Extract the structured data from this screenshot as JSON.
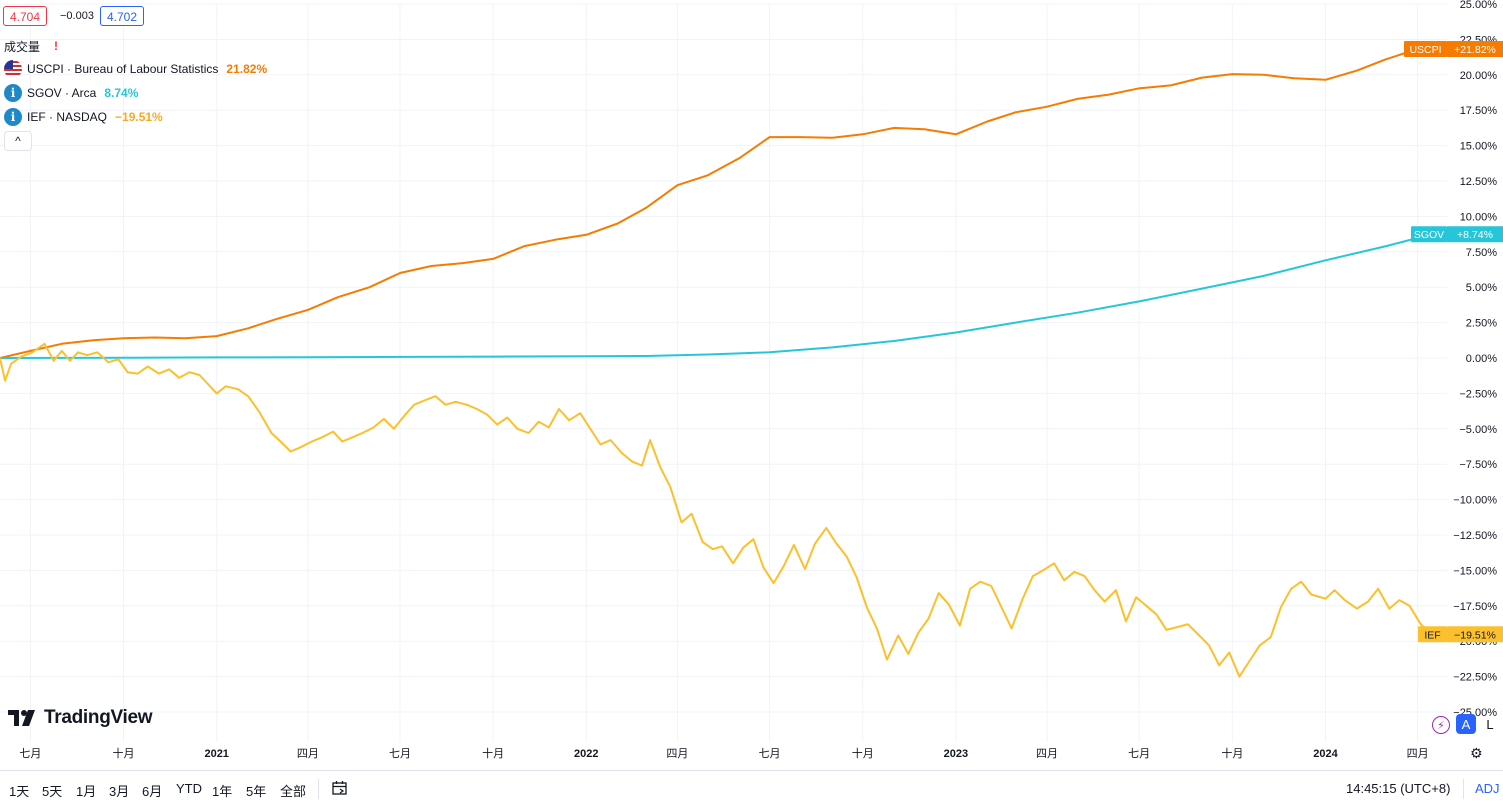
{
  "quote": {
    "sell": "4.704",
    "spread": "−0.003",
    "buy": "4.702"
  },
  "legend": {
    "volume_label": "成交量",
    "warning": "!",
    "series": [
      {
        "symbol": "USCPI · Bureau of Labour Statistics",
        "value": "21.82%",
        "color": "#f57c00",
        "icon": "us-flag-icon"
      },
      {
        "symbol": "SGOV · Arca",
        "value": "8.74%",
        "color": "#26c6da",
        "icon": "info-icon"
      },
      {
        "symbol": "IEF · NASDAQ",
        "value": "−19.51%",
        "color": "#fbc02d",
        "icon": "info-icon"
      }
    ],
    "collapse": "^"
  },
  "brand": "TradingView",
  "timeframes": [
    "1天",
    "5天",
    "1月",
    "3月",
    "6月",
    "YTD",
    "1年",
    "5年",
    "全部"
  ],
  "clock": "14:45:15 (UTC+8)",
  "adj": "ADJ",
  "scale_buttons": {
    "auto": "A",
    "log": "L"
  },
  "chart_data": {
    "type": "line",
    "y_unit": "%",
    "ylim": [
      -25,
      25
    ],
    "yticks": [
      "25.00%",
      "22.50%",
      "20.00%",
      "17.50%",
      "15.00%",
      "12.50%",
      "10.00%",
      "7.50%",
      "5.00%",
      "2.50%",
      "0.00%",
      "−2.50%",
      "−5.00%",
      "−7.50%",
      "−10.00%",
      "−12.50%",
      "−15.00%",
      "−17.50%",
      "−20.00%",
      "−22.50%",
      "−25.00%"
    ],
    "xlim": [
      "2020-06-01",
      "2024-04-30"
    ],
    "xticks": [
      {
        "label": "七月",
        "date": "2020-07-01",
        "bold": false
      },
      {
        "label": "十月",
        "date": "2020-10-01",
        "bold": false
      },
      {
        "label": "2021",
        "date": "2021-01-01",
        "bold": true
      },
      {
        "label": "四月",
        "date": "2021-04-01",
        "bold": false
      },
      {
        "label": "七月",
        "date": "2021-07-01",
        "bold": false
      },
      {
        "label": "十月",
        "date": "2021-10-01",
        "bold": false
      },
      {
        "label": "2022",
        "date": "2022-01-01",
        "bold": true
      },
      {
        "label": "四月",
        "date": "2022-04-01",
        "bold": false
      },
      {
        "label": "七月",
        "date": "2022-07-01",
        "bold": false
      },
      {
        "label": "十月",
        "date": "2022-10-01",
        "bold": false
      },
      {
        "label": "2023",
        "date": "2023-01-01",
        "bold": true
      },
      {
        "label": "四月",
        "date": "2023-04-01",
        "bold": false
      },
      {
        "label": "七月",
        "date": "2023-07-01",
        "bold": false
      },
      {
        "label": "十月",
        "date": "2023-10-01",
        "bold": false
      },
      {
        "label": "2024",
        "date": "2024-01-01",
        "bold": true
      },
      {
        "label": "四月",
        "date": "2024-04-01",
        "bold": false
      }
    ],
    "series": [
      {
        "name": "USCPI",
        "tag": "USCPI",
        "last_label": "+21.82%",
        "color": "#f57c00",
        "tag_color": "#f57c00",
        "points": [
          [
            "2020-06-01",
            0.0
          ],
          [
            "2020-07-01",
            0.5
          ],
          [
            "2020-08-01",
            1.0
          ],
          [
            "2020-09-01",
            1.25
          ],
          [
            "2020-10-01",
            1.4
          ],
          [
            "2020-11-01",
            1.45
          ],
          [
            "2020-12-01",
            1.4
          ],
          [
            "2021-01-01",
            1.55
          ],
          [
            "2021-02-01",
            2.1
          ],
          [
            "2021-03-01",
            2.75
          ],
          [
            "2021-04-01",
            3.4
          ],
          [
            "2021-05-01",
            4.3
          ],
          [
            "2021-06-01",
            5.0
          ],
          [
            "2021-07-01",
            6.0
          ],
          [
            "2021-08-01",
            6.5
          ],
          [
            "2021-09-01",
            6.7
          ],
          [
            "2021-10-01",
            7.0
          ],
          [
            "2021-11-01",
            7.9
          ],
          [
            "2021-12-01",
            8.35
          ],
          [
            "2022-01-01",
            8.7
          ],
          [
            "2022-02-01",
            9.5
          ],
          [
            "2022-03-01",
            10.6
          ],
          [
            "2022-04-01",
            12.2
          ],
          [
            "2022-05-01",
            12.9
          ],
          [
            "2022-06-01",
            14.1
          ],
          [
            "2022-07-01",
            15.6
          ],
          [
            "2022-08-01",
            15.6
          ],
          [
            "2022-09-01",
            15.55
          ],
          [
            "2022-10-01",
            15.8
          ],
          [
            "2022-11-01",
            16.25
          ],
          [
            "2022-12-01",
            16.15
          ],
          [
            "2023-01-01",
            15.8
          ],
          [
            "2023-02-01",
            16.7
          ],
          [
            "2023-03-01",
            17.35
          ],
          [
            "2023-04-01",
            17.75
          ],
          [
            "2023-05-01",
            18.3
          ],
          [
            "2023-06-01",
            18.6
          ],
          [
            "2023-07-01",
            19.05
          ],
          [
            "2023-08-01",
            19.25
          ],
          [
            "2023-09-01",
            19.8
          ],
          [
            "2023-10-01",
            20.05
          ],
          [
            "2023-11-01",
            20.0
          ],
          [
            "2023-12-01",
            19.75
          ],
          [
            "2024-01-01",
            19.65
          ],
          [
            "2024-02-01",
            20.3
          ],
          [
            "2024-03-01",
            21.1
          ],
          [
            "2024-04-01",
            21.82
          ]
        ]
      },
      {
        "name": "SGOV",
        "tag": "SGOV",
        "last_label": "+8.74%",
        "color": "#26c6da",
        "tag_color": "#26c6da",
        "points": [
          [
            "2020-06-01",
            0.0
          ],
          [
            "2020-10-01",
            0.02
          ],
          [
            "2021-01-01",
            0.04
          ],
          [
            "2021-04-01",
            0.06
          ],
          [
            "2021-07-01",
            0.08
          ],
          [
            "2021-10-01",
            0.1
          ],
          [
            "2022-01-01",
            0.12
          ],
          [
            "2022-03-01",
            0.14
          ],
          [
            "2022-05-01",
            0.25
          ],
          [
            "2022-07-01",
            0.4
          ],
          [
            "2022-09-01",
            0.75
          ],
          [
            "2022-11-01",
            1.2
          ],
          [
            "2023-01-01",
            1.8
          ],
          [
            "2023-03-01",
            2.5
          ],
          [
            "2023-05-01",
            3.2
          ],
          [
            "2023-07-01",
            4.0
          ],
          [
            "2023-09-01",
            4.9
          ],
          [
            "2023-11-01",
            5.8
          ],
          [
            "2024-01-01",
            6.9
          ],
          [
            "2024-03-01",
            7.9
          ],
          [
            "2024-04-15",
            8.74
          ]
        ]
      },
      {
        "name": "IEF",
        "tag": "IEF",
        "last_label": "−19.51%",
        "color": "#fbc02d",
        "tag_color": "#fbc02d",
        "points": [
          [
            "2020-06-01",
            0.0
          ],
          [
            "2020-06-06",
            -1.6
          ],
          [
            "2020-06-12",
            -0.4
          ],
          [
            "2020-06-22",
            0.1
          ],
          [
            "2020-07-03",
            0.4
          ],
          [
            "2020-07-15",
            1.0
          ],
          [
            "2020-07-24",
            -0.2
          ],
          [
            "2020-08-01",
            0.5
          ],
          [
            "2020-08-09",
            -0.2
          ],
          [
            "2020-08-17",
            0.4
          ],
          [
            "2020-08-26",
            0.2
          ],
          [
            "2020-09-05",
            0.4
          ],
          [
            "2020-09-16",
            -0.3
          ],
          [
            "2020-09-26",
            -0.1
          ],
          [
            "2020-10-05",
            -1.0
          ],
          [
            "2020-10-15",
            -1.1
          ],
          [
            "2020-10-25",
            -0.6
          ],
          [
            "2020-11-05",
            -1.1
          ],
          [
            "2020-11-15",
            -0.8
          ],
          [
            "2020-11-25",
            -1.4
          ],
          [
            "2020-12-05",
            -1.0
          ],
          [
            "2020-12-15",
            -1.2
          ],
          [
            "2021-01-01",
            -2.5
          ],
          [
            "2021-01-10",
            -2.0
          ],
          [
            "2021-01-22",
            -2.2
          ],
          [
            "2021-02-01",
            -2.7
          ],
          [
            "2021-02-12",
            -3.8
          ],
          [
            "2021-02-24",
            -5.3
          ],
          [
            "2021-03-05",
            -5.9
          ],
          [
            "2021-03-15",
            -6.6
          ],
          [
            "2021-03-25",
            -6.3
          ],
          [
            "2021-04-05",
            -5.9
          ],
          [
            "2021-04-15",
            -5.6
          ],
          [
            "2021-04-26",
            -5.2
          ],
          [
            "2021-05-05",
            -5.9
          ],
          [
            "2021-05-15",
            -5.6
          ],
          [
            "2021-05-25",
            -5.3
          ],
          [
            "2021-06-05",
            -4.9
          ],
          [
            "2021-06-15",
            -4.3
          ],
          [
            "2021-06-25",
            -5.0
          ],
          [
            "2021-07-05",
            -4.1
          ],
          [
            "2021-07-15",
            -3.3
          ],
          [
            "2021-07-25",
            -3.0
          ],
          [
            "2021-08-05",
            -2.7
          ],
          [
            "2021-08-15",
            -3.3
          ],
          [
            "2021-08-25",
            -3.1
          ],
          [
            "2021-09-05",
            -3.3
          ],
          [
            "2021-09-15",
            -3.6
          ],
          [
            "2021-09-25",
            -4.0
          ],
          [
            "2021-10-05",
            -4.7
          ],
          [
            "2021-10-15",
            -4.2
          ],
          [
            "2021-10-25",
            -5.0
          ],
          [
            "2021-11-05",
            -5.3
          ],
          [
            "2021-11-15",
            -4.5
          ],
          [
            "2021-11-25",
            -4.9
          ],
          [
            "2021-12-05",
            -3.6
          ],
          [
            "2021-12-15",
            -4.4
          ],
          [
            "2021-12-26",
            -3.9
          ],
          [
            "2022-01-05",
            -5.0
          ],
          [
            "2022-01-15",
            -6.1
          ],
          [
            "2022-01-25",
            -5.8
          ],
          [
            "2022-02-05",
            -6.7
          ],
          [
            "2022-02-15",
            -7.3
          ],
          [
            "2022-02-25",
            -7.6
          ],
          [
            "2022-03-05",
            -5.8
          ],
          [
            "2022-03-15",
            -7.7
          ],
          [
            "2022-03-25",
            -9.1
          ],
          [
            "2022-04-05",
            -11.6
          ],
          [
            "2022-04-15",
            -11.0
          ],
          [
            "2022-04-26",
            -13.0
          ],
          [
            "2022-05-06",
            -13.5
          ],
          [
            "2022-05-15",
            -13.3
          ],
          [
            "2022-05-26",
            -14.5
          ],
          [
            "2022-06-05",
            -13.4
          ],
          [
            "2022-06-15",
            -12.8
          ],
          [
            "2022-06-25",
            -14.8
          ],
          [
            "2022-07-05",
            -15.9
          ],
          [
            "2022-07-15",
            -14.7
          ],
          [
            "2022-07-25",
            -13.2
          ],
          [
            "2022-08-05",
            -14.9
          ],
          [
            "2022-08-15",
            -13.1
          ],
          [
            "2022-08-26",
            -12.0
          ],
          [
            "2022-09-05",
            -13.1
          ],
          [
            "2022-09-15",
            -14.0
          ],
          [
            "2022-09-25",
            -15.5
          ],
          [
            "2022-10-05",
            -17.6
          ],
          [
            "2022-10-15",
            -19.1
          ],
          [
            "2022-10-25",
            -21.3
          ],
          [
            "2022-11-05",
            -19.6
          ],
          [
            "2022-11-15",
            -20.9
          ],
          [
            "2022-11-25",
            -19.4
          ],
          [
            "2022-12-05",
            -18.4
          ],
          [
            "2022-12-15",
            -16.6
          ],
          [
            "2022-12-25",
            -17.4
          ],
          [
            "2023-01-05",
            -18.9
          ],
          [
            "2023-01-15",
            -16.3
          ],
          [
            "2023-01-25",
            -15.8
          ],
          [
            "2023-02-05",
            -16.1
          ],
          [
            "2023-02-15",
            -17.6
          ],
          [
            "2023-02-25",
            -19.1
          ],
          [
            "2023-03-08",
            -17.0
          ],
          [
            "2023-03-18",
            -15.4
          ],
          [
            "2023-03-28",
            -15.0
          ],
          [
            "2023-04-08",
            -14.5
          ],
          [
            "2023-04-18",
            -15.7
          ],
          [
            "2023-04-28",
            -15.1
          ],
          [
            "2023-05-08",
            -15.4
          ],
          [
            "2023-05-18",
            -16.4
          ],
          [
            "2023-05-28",
            -17.2
          ],
          [
            "2023-06-08",
            -16.4
          ],
          [
            "2023-06-18",
            -18.6
          ],
          [
            "2023-06-28",
            -16.9
          ],
          [
            "2023-07-08",
            -17.5
          ],
          [
            "2023-07-18",
            -18.1
          ],
          [
            "2023-07-28",
            -19.2
          ],
          [
            "2023-08-08",
            -19.0
          ],
          [
            "2023-08-18",
            -18.8
          ],
          [
            "2023-08-28",
            -19.5
          ],
          [
            "2023-09-08",
            -20.3
          ],
          [
            "2023-09-18",
            -21.7
          ],
          [
            "2023-09-28",
            -20.8
          ],
          [
            "2023-10-08",
            -22.5
          ],
          [
            "2023-10-18",
            -21.4
          ],
          [
            "2023-10-28",
            -20.3
          ],
          [
            "2023-11-08",
            -19.7
          ],
          [
            "2023-11-18",
            -17.6
          ],
          [
            "2023-11-28",
            -16.3
          ],
          [
            "2023-12-08",
            -15.8
          ],
          [
            "2023-12-18",
            -16.7
          ],
          [
            "2024-01-01",
            -17.0
          ],
          [
            "2024-01-10",
            -16.4
          ],
          [
            "2024-01-20",
            -17.1
          ],
          [
            "2024-02-01",
            -17.7
          ],
          [
            "2024-02-12",
            -17.2
          ],
          [
            "2024-02-22",
            -16.3
          ],
          [
            "2024-03-04",
            -17.7
          ],
          [
            "2024-03-14",
            -17.1
          ],
          [
            "2024-03-24",
            -17.5
          ],
          [
            "2024-04-04",
            -18.8
          ],
          [
            "2024-04-15",
            -19.51
          ]
        ]
      }
    ]
  }
}
